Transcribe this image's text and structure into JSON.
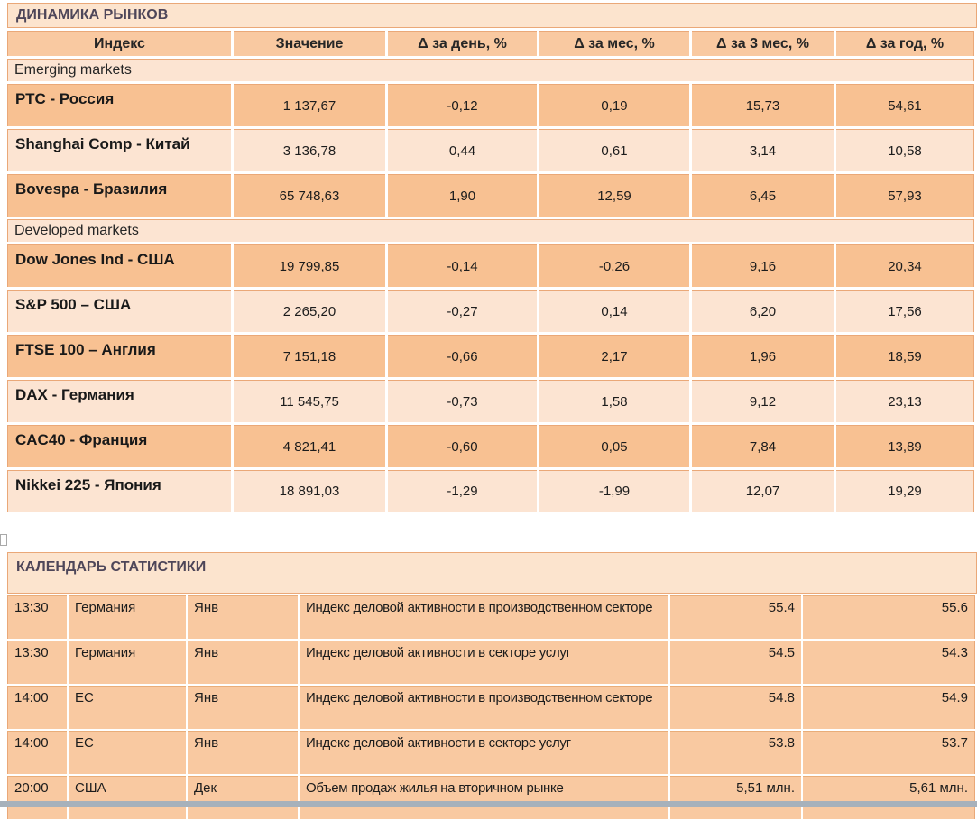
{
  "markets": {
    "title": "ДИНАМИКА РЫНКОВ",
    "columns": [
      "Индекс",
      "Значение",
      "Δ за день, %",
      "Δ за мес, %",
      "Δ за 3 мес, %",
      "Δ за год, %"
    ],
    "sections": [
      {
        "label": "Emerging markets",
        "rows": [
          {
            "name": "РТС - Россия",
            "value": "1 137,67",
            "d_day": "-0,12",
            "d_month": "0,19",
            "d_3month": "15,73",
            "d_year": "54,61"
          },
          {
            "name": "Shanghai Comp - Китай",
            "value": "3 136,78",
            "d_day": "0,44",
            "d_month": "0,61",
            "d_3month": "3,14",
            "d_year": "10,58"
          },
          {
            "name": "Bovespa - Бразилия",
            "value": "65 748,63",
            "d_day": "1,90",
            "d_month": "12,59",
            "d_3month": "6,45",
            "d_year": "57,93"
          }
        ]
      },
      {
        "label": "Developed markets",
        "rows": [
          {
            "name": "Dow Jones Ind - США",
            "value": "19 799,85",
            "d_day": "-0,14",
            "d_month": "-0,26",
            "d_3month": "9,16",
            "d_year": "20,34"
          },
          {
            "name": "S&P 500 – США",
            "value": "2 265,20",
            "d_day": "-0,27",
            "d_month": "0,14",
            "d_3month": "6,20",
            "d_year": "17,56"
          },
          {
            "name": "FTSE 100 – Англия",
            "value": "7 151,18",
            "d_day": "-0,66",
            "d_month": "2,17",
            "d_3month": "1,96",
            "d_year": "18,59"
          },
          {
            "name": "DAX - Германия",
            "value": "11 545,75",
            "d_day": "-0,73",
            "d_month": "1,58",
            "d_3month": "9,12",
            "d_year": "23,13"
          },
          {
            "name": "CAC40 - Франция",
            "value": "4 821,41",
            "d_day": "-0,60",
            "d_month": "0,05",
            "d_3month": "7,84",
            "d_year": "13,89"
          },
          {
            "name": "Nikkei 225 - Япония",
            "value": "18 891,03",
            "d_day": "-1,29",
            "d_month": "-1,99",
            "d_3month": "12,07",
            "d_year": "19,29"
          }
        ]
      }
    ]
  },
  "calendar": {
    "title": "КАЛЕНДАРЬ СТАТИСТИКИ",
    "rows": [
      {
        "time": "13:30",
        "country": "Германия",
        "period": "Янв",
        "event": "Индекс деловой активности в производственном секторе",
        "v1": "55.4",
        "v2": "55.6"
      },
      {
        "time": "13:30",
        "country": "Германия",
        "period": "Янв",
        "event": "Индекс деловой активности в секторе услуг",
        "v1": "54.5",
        "v2": "54.3"
      },
      {
        "time": "14:00",
        "country": "ЕС",
        "period": "Янв",
        "event": "Индекс деловой активности в производственном секторе",
        "v1": "54.8",
        "v2": "54.9"
      },
      {
        "time": "14:00",
        "country": "ЕС",
        "period": "Янв",
        "event": "Индекс деловой активности в секторе услуг",
        "v1": "53.8",
        "v2": "53.7"
      },
      {
        "time": "20:00",
        "country": "США",
        "period": "Дек",
        "event": "Объем продаж жилья на вторичном рынке",
        "v1": "5,51 млн.",
        "v2": "5,61 млн."
      }
    ]
  }
}
